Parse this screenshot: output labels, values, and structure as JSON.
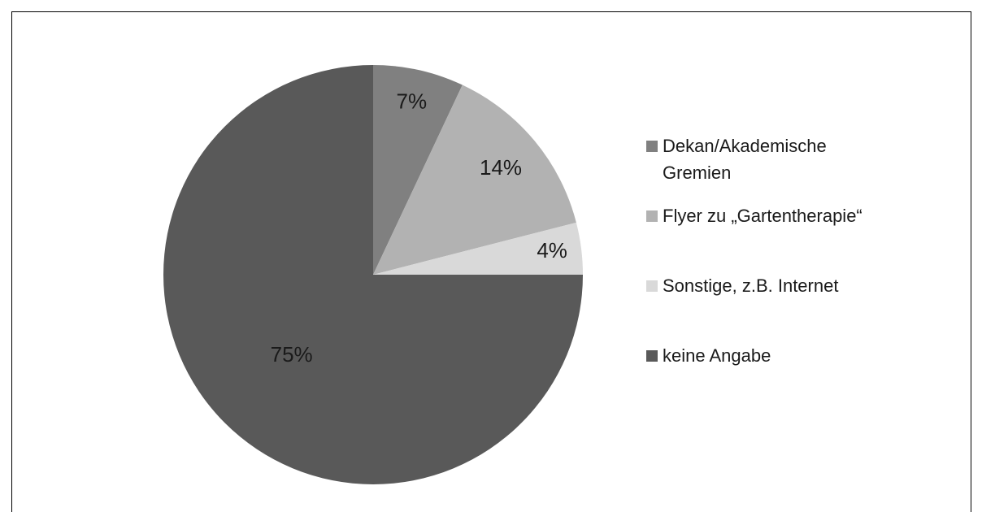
{
  "chart_data": {
    "type": "pie",
    "categories": [
      "Dekan/Akademische Gremien",
      "Flyer zu „Gartentherapie“",
      "Sonstige, z.B. Internet",
      "keine Angabe"
    ],
    "values": [
      7,
      14,
      4,
      75
    ],
    "value_labels": [
      "7%",
      "14%",
      "4%",
      "75%"
    ],
    "colors": [
      "#808080",
      "#b2b2b2",
      "#d9d9d9",
      "#595959"
    ],
    "legend": "right"
  }
}
